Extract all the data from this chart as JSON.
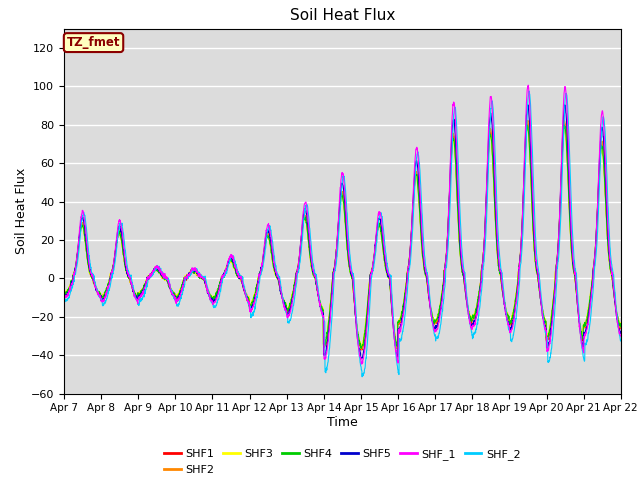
{
  "title": "Soil Heat Flux",
  "xlabel": "Time",
  "ylabel": "Soil Heat Flux",
  "ylim": [
    -60,
    130
  ],
  "yticks": [
    -60,
    -40,
    -20,
    0,
    20,
    40,
    60,
    80,
    100,
    120
  ],
  "x_tick_labels": [
    "Apr 7",
    "Apr 8",
    "Apr 9",
    "Apr 10",
    "Apr 11",
    "Apr 12",
    "Apr 13",
    "Apr 14",
    "Apr 15",
    "Apr 16",
    "Apr 17",
    "Apr 18",
    "Apr 19",
    "Apr 20",
    "Apr 21",
    "Apr 22"
  ],
  "annotation_text": "TZ_fmet",
  "annotation_bg": "#FFFFC0",
  "annotation_fg": "#8B0000",
  "background_color": "#DCDCDC",
  "series_colors": {
    "SHF1": "#FF0000",
    "SHF2": "#FF8800",
    "SHF3": "#FFFF00",
    "SHF4": "#00CC00",
    "SHF5": "#0000CC",
    "SHF_1": "#FF00FF",
    "SHF_2": "#00CCFF"
  },
  "legend_order": [
    "SHF1",
    "SHF2",
    "SHF3",
    "SHF4",
    "SHF5",
    "SHF_1",
    "SHF_2"
  ],
  "day_pos_amps": [
    35,
    30,
    6,
    5,
    12,
    28,
    40,
    55,
    35,
    68,
    92,
    95,
    100,
    100,
    87
  ],
  "day_neg_amps": [
    -10,
    -12,
    -10,
    -12,
    -13,
    -17,
    -20,
    -42,
    -44,
    -28,
    -27,
    -25,
    -28,
    -38,
    -30
  ]
}
